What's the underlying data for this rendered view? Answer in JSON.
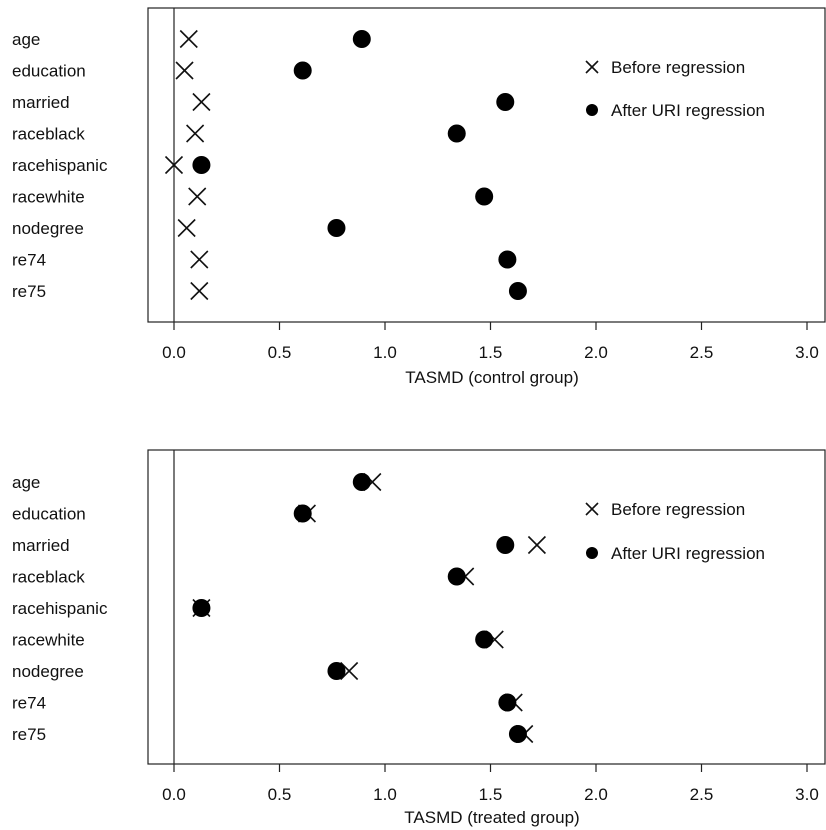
{
  "chart_data": [
    {
      "type": "scatter",
      "xlabel": "TASMD (control group)",
      "xlim": [
        -0.12,
        3.08
      ],
      "xticks": [
        0.0,
        0.5,
        1.0,
        1.5,
        2.0,
        2.5,
        3.0
      ],
      "xtick_labels": [
        "0.0",
        "0.5",
        "1.0",
        "1.5",
        "2.0",
        "2.5",
        "3.0"
      ],
      "categories": [
        "age",
        "education",
        "married",
        "raceblack",
        "racehispanic",
        "racewhite",
        "nodegree",
        "re74",
        "re75"
      ],
      "reference_line": 0,
      "legend": {
        "placement": "top-right",
        "entries": [
          "Before regression",
          "After URI regression"
        ]
      },
      "series": [
        {
          "name": "Before regression",
          "marker": "x",
          "values": [
            0.07,
            0.05,
            0.13,
            0.1,
            0.0,
            0.11,
            0.06,
            0.12,
            0.12
          ]
        },
        {
          "name": "After URI regression",
          "marker": "filled-circle",
          "values": [
            0.89,
            0.61,
            1.57,
            1.34,
            0.13,
            1.47,
            0.77,
            1.58,
            1.63
          ]
        }
      ]
    },
    {
      "type": "scatter",
      "xlabel": "TASMD (treated group)",
      "xlim": [
        -0.12,
        3.08
      ],
      "xticks": [
        0.0,
        0.5,
        1.0,
        1.5,
        2.0,
        2.5,
        3.0
      ],
      "xtick_labels": [
        "0.0",
        "0.5",
        "1.0",
        "1.5",
        "2.0",
        "2.5",
        "3.0"
      ],
      "categories": [
        "age",
        "education",
        "married",
        "raceblack",
        "racehispanic",
        "racewhite",
        "nodegree",
        "re74",
        "re75"
      ],
      "reference_line": 0,
      "legend": {
        "placement": "top-right",
        "entries": [
          "Before regression",
          "After URI regression"
        ]
      },
      "series": [
        {
          "name": "Before regression",
          "marker": "x",
          "values": [
            0.94,
            0.63,
            1.72,
            1.38,
            0.13,
            1.52,
            0.83,
            1.61,
            1.66
          ]
        },
        {
          "name": "After URI regression",
          "marker": "filled-circle",
          "values": [
            0.89,
            0.61,
            1.57,
            1.34,
            0.13,
            1.47,
            0.77,
            1.58,
            1.63
          ]
        }
      ]
    }
  ]
}
